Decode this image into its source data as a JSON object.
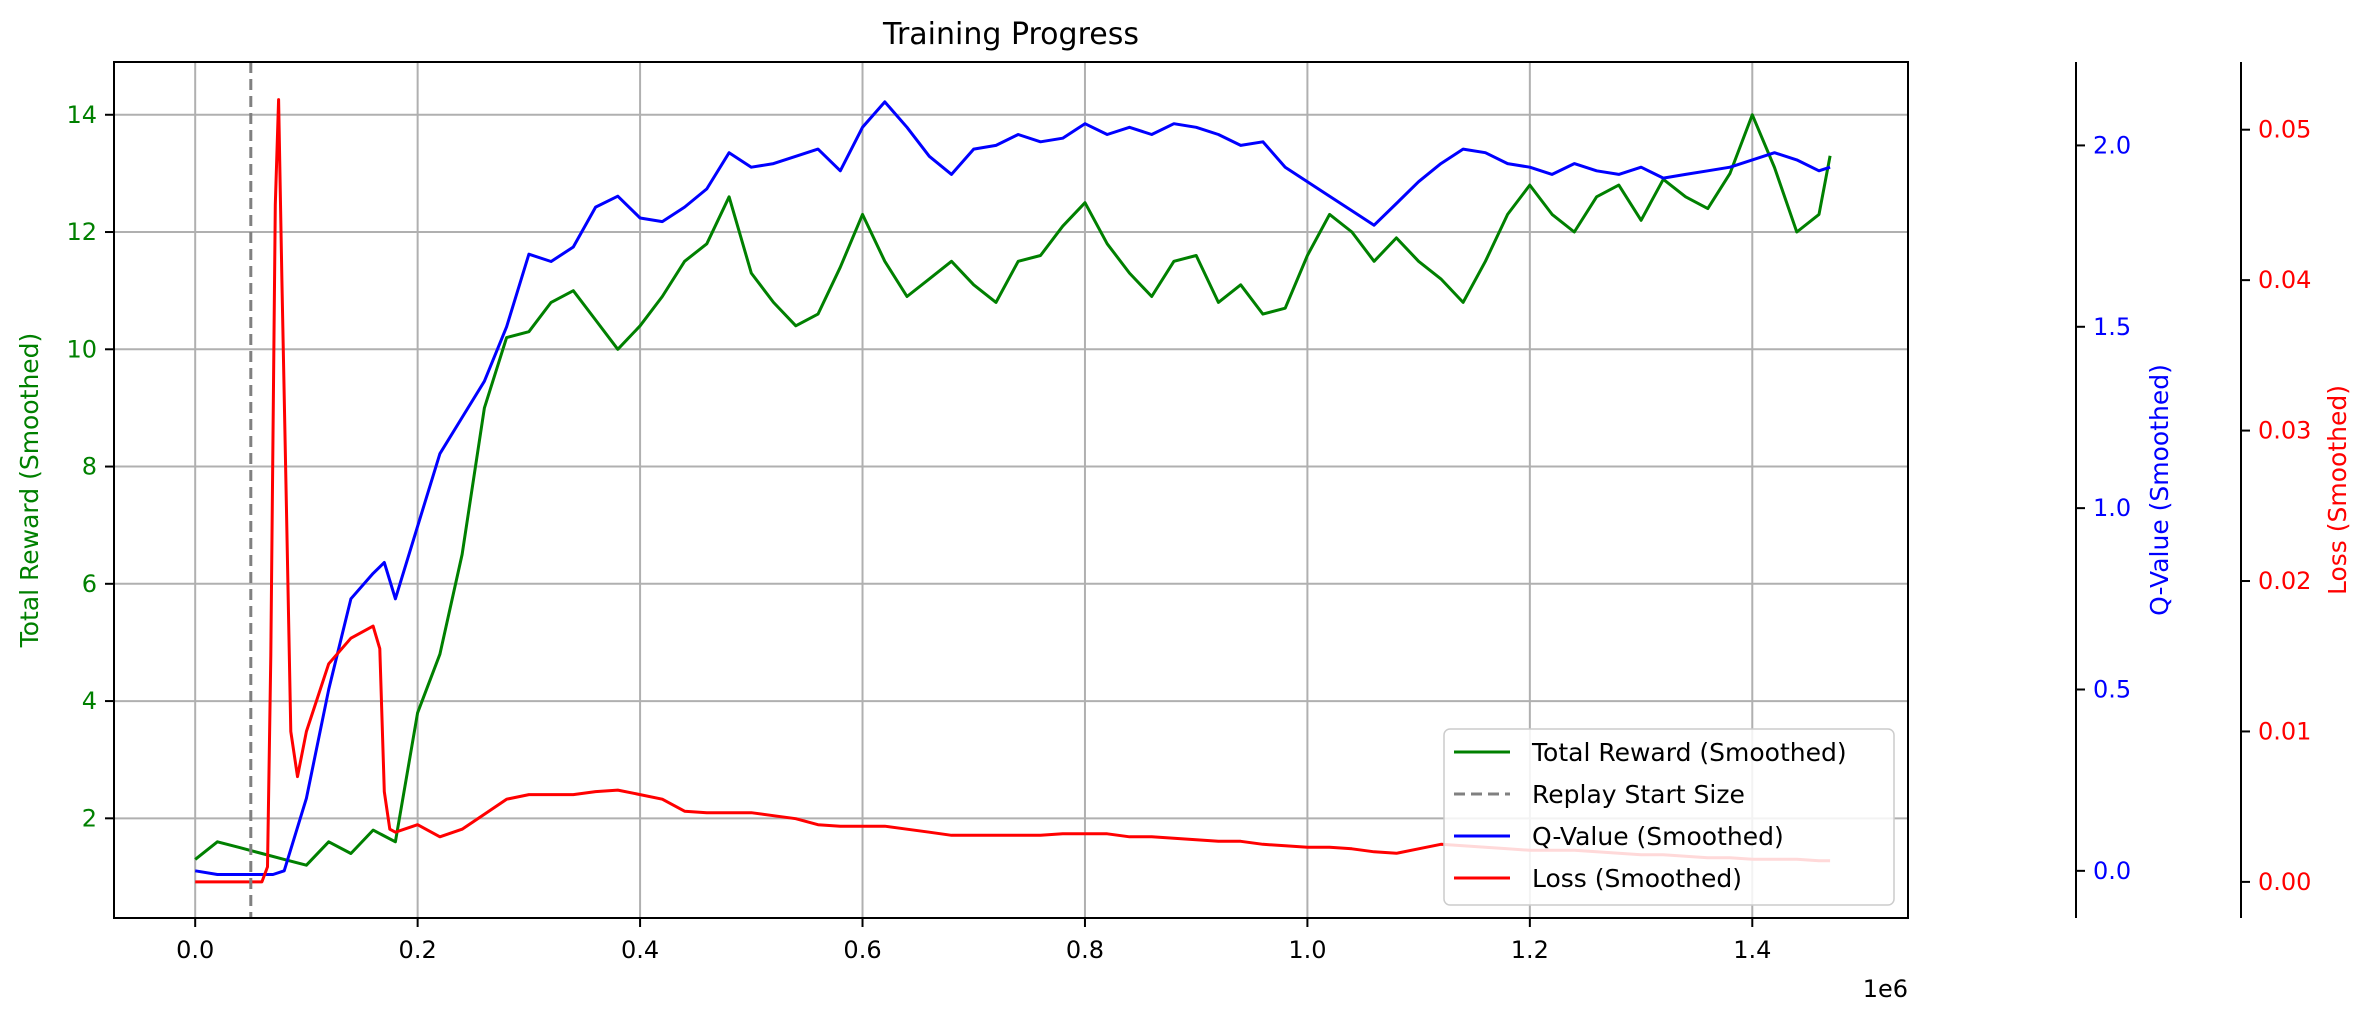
{
  "chart_data": {
    "type": "line",
    "title": "Training Progress",
    "x_offset_label": "1e6",
    "grid": true,
    "legend_position": "lower-right",
    "xlim": [
      -0.073,
      1.54
    ],
    "x_ticks": [
      "0.0",
      "0.2",
      "0.4",
      "0.6",
      "0.8",
      "1.0",
      "1.2",
      "1.4"
    ],
    "axes": {
      "left": {
        "label": "Total Reward (Smoothed)",
        "color": "#008000",
        "ylim": [
          0.3,
          14.9
        ],
        "ticks": [
          "2",
          "4",
          "6",
          "8",
          "10",
          "12",
          "14"
        ]
      },
      "right1": {
        "label": "Q-Value (Smoothed)",
        "color": "#0000ff",
        "ylim": [
          -0.13,
          2.23
        ],
        "ticks": [
          "0.0",
          "0.5",
          "1.0",
          "1.5",
          "2.0"
        ]
      },
      "right2": {
        "label": "Loss (Smoothed)",
        "color": "#ff0000",
        "ylim": [
          -0.0024,
          0.0545
        ],
        "ticks": [
          "0.00",
          "0.01",
          "0.02",
          "0.03",
          "0.04",
          "0.05"
        ]
      }
    },
    "vline": {
      "name": "Replay Start Size",
      "x": 0.05,
      "color": "#808080"
    },
    "series": [
      {
        "name": "Total Reward (Smoothed)",
        "axis": "left",
        "color": "#008000",
        "x": [
          0.0,
          0.02,
          0.04,
          0.06,
          0.08,
          0.1,
          0.12,
          0.14,
          0.16,
          0.18,
          0.2,
          0.22,
          0.24,
          0.26,
          0.28,
          0.3,
          0.32,
          0.34,
          0.36,
          0.38,
          0.4,
          0.42,
          0.44,
          0.46,
          0.48,
          0.5,
          0.52,
          0.54,
          0.56,
          0.58,
          0.6,
          0.62,
          0.64,
          0.66,
          0.68,
          0.7,
          0.72,
          0.74,
          0.76,
          0.78,
          0.8,
          0.82,
          0.84,
          0.86,
          0.88,
          0.9,
          0.92,
          0.94,
          0.96,
          0.98,
          1.0,
          1.02,
          1.04,
          1.06,
          1.08,
          1.1,
          1.12,
          1.14,
          1.16,
          1.18,
          1.2,
          1.22,
          1.24,
          1.26,
          1.28,
          1.3,
          1.32,
          1.34,
          1.36,
          1.38,
          1.4,
          1.42,
          1.44,
          1.46,
          1.47
        ],
        "values": [
          1.3,
          1.6,
          1.5,
          1.4,
          1.3,
          1.2,
          1.6,
          1.4,
          1.8,
          1.6,
          3.8,
          4.8,
          6.5,
          9.0,
          10.2,
          10.3,
          10.8,
          11.0,
          10.5,
          10.0,
          10.4,
          10.9,
          11.5,
          11.8,
          12.6,
          11.3,
          10.8,
          10.4,
          10.6,
          11.4,
          12.3,
          11.5,
          10.9,
          11.2,
          11.5,
          11.1,
          10.8,
          11.5,
          11.6,
          12.1,
          12.5,
          11.8,
          11.3,
          10.9,
          11.5,
          11.6,
          10.8,
          11.1,
          10.6,
          10.7,
          11.6,
          12.3,
          12.0,
          11.5,
          11.9,
          11.5,
          11.2,
          10.8,
          11.5,
          12.3,
          12.8,
          12.3,
          12.0,
          12.6,
          12.8,
          12.2,
          12.9,
          12.6,
          12.4,
          13.0,
          14.0,
          13.1,
          12.0,
          12.3,
          13.3
        ]
      },
      {
        "name": "Q-Value (Smoothed)",
        "axis": "right1",
        "color": "#0000ff",
        "x": [
          0.0,
          0.02,
          0.04,
          0.06,
          0.07,
          0.08,
          0.1,
          0.12,
          0.14,
          0.16,
          0.17,
          0.18,
          0.2,
          0.22,
          0.24,
          0.26,
          0.28,
          0.3,
          0.32,
          0.34,
          0.36,
          0.38,
          0.4,
          0.42,
          0.44,
          0.46,
          0.48,
          0.5,
          0.52,
          0.54,
          0.56,
          0.58,
          0.6,
          0.62,
          0.64,
          0.66,
          0.68,
          0.7,
          0.72,
          0.74,
          0.76,
          0.78,
          0.8,
          0.82,
          0.84,
          0.86,
          0.88,
          0.9,
          0.92,
          0.94,
          0.96,
          0.98,
          1.0,
          1.02,
          1.04,
          1.06,
          1.08,
          1.1,
          1.12,
          1.14,
          1.16,
          1.18,
          1.2,
          1.22,
          1.24,
          1.26,
          1.28,
          1.3,
          1.32,
          1.34,
          1.36,
          1.38,
          1.4,
          1.42,
          1.44,
          1.46,
          1.47
        ],
        "values": [
          0.0,
          -0.01,
          -0.01,
          -0.01,
          -0.01,
          0.0,
          0.2,
          0.5,
          0.75,
          0.82,
          0.85,
          0.75,
          0.95,
          1.15,
          1.25,
          1.35,
          1.5,
          1.7,
          1.68,
          1.72,
          1.83,
          1.86,
          1.8,
          1.79,
          1.83,
          1.88,
          1.98,
          1.94,
          1.95,
          1.97,
          1.99,
          1.93,
          2.05,
          2.12,
          2.05,
          1.97,
          1.92,
          1.99,
          2.0,
          2.03,
          2.01,
          2.02,
          2.06,
          2.03,
          2.05,
          2.03,
          2.06,
          2.05,
          2.03,
          2.0,
          2.01,
          1.94,
          1.9,
          1.86,
          1.82,
          1.78,
          1.84,
          1.9,
          1.95,
          1.99,
          1.98,
          1.95,
          1.94,
          1.92,
          1.95,
          1.93,
          1.92,
          1.94,
          1.91,
          1.92,
          1.93,
          1.94,
          1.96,
          1.98,
          1.96,
          1.93,
          1.94
        ]
      },
      {
        "name": "Loss (Smoothed)",
        "axis": "right2",
        "color": "#ff0000",
        "x": [
          0.0,
          0.02,
          0.04,
          0.06,
          0.065,
          0.068,
          0.072,
          0.075,
          0.078,
          0.082,
          0.086,
          0.092,
          0.1,
          0.12,
          0.14,
          0.16,
          0.166,
          0.17,
          0.175,
          0.18,
          0.2,
          0.22,
          0.24,
          0.26,
          0.28,
          0.3,
          0.32,
          0.34,
          0.36,
          0.38,
          0.4,
          0.42,
          0.44,
          0.46,
          0.48,
          0.5,
          0.52,
          0.54,
          0.56,
          0.58,
          0.6,
          0.62,
          0.64,
          0.66,
          0.68,
          0.7,
          0.72,
          0.74,
          0.76,
          0.78,
          0.8,
          0.82,
          0.84,
          0.86,
          0.88,
          0.9,
          0.92,
          0.94,
          0.96,
          0.98,
          1.0,
          1.02,
          1.04,
          1.06,
          1.08,
          1.1,
          1.12,
          1.14,
          1.16,
          1.18,
          1.2,
          1.22,
          1.24,
          1.26,
          1.28,
          1.3,
          1.32,
          1.34,
          1.36,
          1.38,
          1.4,
          1.42,
          1.44,
          1.46,
          1.47
        ],
        "values": [
          0.0,
          0.0,
          0.0,
          0.0,
          0.001,
          0.015,
          0.045,
          0.052,
          0.04,
          0.025,
          0.01,
          0.007,
          0.01,
          0.0145,
          0.0162,
          0.017,
          0.0155,
          0.006,
          0.0035,
          0.0033,
          0.0038,
          0.003,
          0.0035,
          0.0045,
          0.0055,
          0.0058,
          0.0058,
          0.0058,
          0.006,
          0.0061,
          0.0058,
          0.0055,
          0.0047,
          0.0046,
          0.0046,
          0.0046,
          0.0044,
          0.0042,
          0.0038,
          0.0037,
          0.0037,
          0.0037,
          0.0035,
          0.0033,
          0.0031,
          0.0031,
          0.0031,
          0.0031,
          0.0031,
          0.0032,
          0.0032,
          0.0032,
          0.003,
          0.003,
          0.0029,
          0.0028,
          0.0027,
          0.0027,
          0.0025,
          0.0024,
          0.0023,
          0.0023,
          0.0022,
          0.002,
          0.0019,
          0.0022,
          0.0025,
          0.0024,
          0.0023,
          0.0022,
          0.0021,
          0.0021,
          0.0021,
          0.002,
          0.0019,
          0.0018,
          0.0018,
          0.0017,
          0.0016,
          0.0016,
          0.0015,
          0.0015,
          0.0015,
          0.0014,
          0.0014
        ]
      }
    ]
  }
}
